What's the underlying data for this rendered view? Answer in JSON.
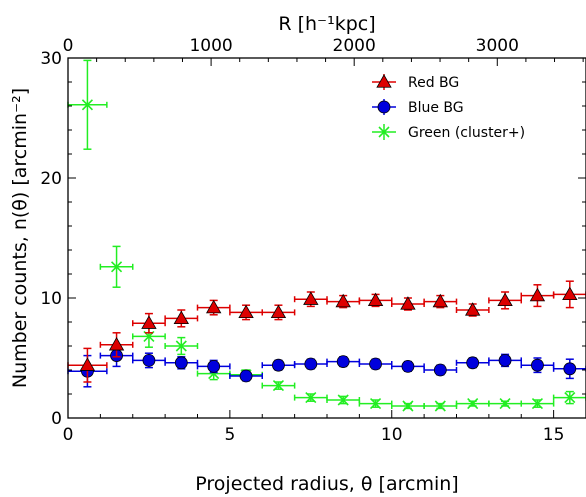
{
  "chart_data": {
    "type": "scatter",
    "title": "",
    "xlabel": "Projected radius, θ [arcmin]",
    "ylabel": "Number counts, n(θ) [arcmin⁻²]",
    "top_xlabel": "R [h⁻¹kpc]",
    "xlim": [
      0,
      16
    ],
    "ylim": [
      0,
      30
    ],
    "top_xlim_kpc": [
      0,
      3620
    ],
    "x_ticks": [
      "0",
      "5",
      "10",
      "15"
    ],
    "y_ticks": [
      "0",
      "10",
      "20",
      "30"
    ],
    "top_ticks": [
      "0",
      "1000",
      "2000",
      "3000"
    ],
    "legend_position": "top-right",
    "series": [
      {
        "name": "Red BG",
        "marker": "triangle",
        "color": "#dd0000",
        "points": [
          {
            "x": 0.6,
            "xerr": 0.6,
            "y": 4.4,
            "yerr": 1.4
          },
          {
            "x": 1.5,
            "xerr": 0.5,
            "y": 6.1,
            "yerr": 1.0
          },
          {
            "x": 2.5,
            "xerr": 0.5,
            "y": 7.9,
            "yerr": 0.8
          },
          {
            "x": 3.5,
            "xerr": 0.5,
            "y": 8.3,
            "yerr": 0.7
          },
          {
            "x": 4.5,
            "xerr": 0.5,
            "y": 9.2,
            "yerr": 0.6
          },
          {
            "x": 5.5,
            "xerr": 0.5,
            "y": 8.8,
            "yerr": 0.6
          },
          {
            "x": 6.5,
            "xerr": 0.5,
            "y": 8.8,
            "yerr": 0.6
          },
          {
            "x": 7.5,
            "xerr": 0.5,
            "y": 9.9,
            "yerr": 0.6
          },
          {
            "x": 8.5,
            "xerr": 0.5,
            "y": 9.7,
            "yerr": 0.5
          },
          {
            "x": 9.5,
            "xerr": 0.5,
            "y": 9.8,
            "yerr": 0.5
          },
          {
            "x": 10.5,
            "xerr": 0.5,
            "y": 9.5,
            "yerr": 0.5
          },
          {
            "x": 11.5,
            "xerr": 0.5,
            "y": 9.7,
            "yerr": 0.5
          },
          {
            "x": 12.5,
            "xerr": 0.5,
            "y": 9.0,
            "yerr": 0.5
          },
          {
            "x": 13.5,
            "xerr": 0.5,
            "y": 9.8,
            "yerr": 0.7
          },
          {
            "x": 14.5,
            "xerr": 0.5,
            "y": 10.2,
            "yerr": 0.9
          },
          {
            "x": 15.5,
            "xerr": 0.5,
            "y": 10.3,
            "yerr": 1.1
          }
        ]
      },
      {
        "name": "Blue BG",
        "marker": "circle",
        "color": "#0000dd",
        "points": [
          {
            "x": 0.6,
            "xerr": 0.6,
            "y": 3.9,
            "yerr": 1.3
          },
          {
            "x": 1.5,
            "xerr": 0.5,
            "y": 5.2,
            "yerr": 0.9
          },
          {
            "x": 2.5,
            "xerr": 0.5,
            "y": 4.8,
            "yerr": 0.6
          },
          {
            "x": 3.5,
            "xerr": 0.5,
            "y": 4.6,
            "yerr": 0.5
          },
          {
            "x": 4.5,
            "xerr": 0.5,
            "y": 4.3,
            "yerr": 0.5
          },
          {
            "x": 5.5,
            "xerr": 0.5,
            "y": 3.5,
            "yerr": 0.4
          },
          {
            "x": 6.5,
            "xerr": 0.5,
            "y": 4.4,
            "yerr": 0.4
          },
          {
            "x": 7.5,
            "xerr": 0.5,
            "y": 4.5,
            "yerr": 0.4
          },
          {
            "x": 8.5,
            "xerr": 0.5,
            "y": 4.7,
            "yerr": 0.4
          },
          {
            "x": 9.5,
            "xerr": 0.5,
            "y": 4.5,
            "yerr": 0.4
          },
          {
            "x": 10.5,
            "xerr": 0.5,
            "y": 4.3,
            "yerr": 0.4
          },
          {
            "x": 11.5,
            "xerr": 0.5,
            "y": 4.0,
            "yerr": 0.4
          },
          {
            "x": 12.5,
            "xerr": 0.5,
            "y": 4.6,
            "yerr": 0.4
          },
          {
            "x": 13.5,
            "xerr": 0.5,
            "y": 4.8,
            "yerr": 0.5
          },
          {
            "x": 14.5,
            "xerr": 0.5,
            "y": 4.4,
            "yerr": 0.6
          },
          {
            "x": 15.5,
            "xerr": 0.5,
            "y": 4.1,
            "yerr": 0.8
          }
        ]
      },
      {
        "name": "Green (cluster+)",
        "marker": "x",
        "color": "#22ee22",
        "points": [
          {
            "x": 0.6,
            "xerr": 0.6,
            "y": 26.1,
            "yerr": 3.7
          },
          {
            "x": 1.5,
            "xerr": 0.5,
            "y": 12.6,
            "yerr": 1.7
          },
          {
            "x": 2.5,
            "xerr": 0.5,
            "y": 6.8,
            "yerr": 0.9
          },
          {
            "x": 3.5,
            "xerr": 0.5,
            "y": 6.0,
            "yerr": 0.7
          },
          {
            "x": 4.5,
            "xerr": 0.5,
            "y": 3.7,
            "yerr": 0.5
          },
          {
            "x": 5.5,
            "xerr": 0.5,
            "y": 3.6,
            "yerr": 0.4
          },
          {
            "x": 6.5,
            "xerr": 0.5,
            "y": 2.7,
            "yerr": 0.3
          },
          {
            "x": 7.5,
            "xerr": 0.5,
            "y": 1.7,
            "yerr": 0.3
          },
          {
            "x": 8.5,
            "xerr": 0.5,
            "y": 1.5,
            "yerr": 0.3
          },
          {
            "x": 9.5,
            "xerr": 0.5,
            "y": 1.2,
            "yerr": 0.3
          },
          {
            "x": 10.5,
            "xerr": 0.5,
            "y": 1.0,
            "yerr": 0.2
          },
          {
            "x": 11.5,
            "xerr": 0.5,
            "y": 1.0,
            "yerr": 0.2
          },
          {
            "x": 12.5,
            "xerr": 0.5,
            "y": 1.2,
            "yerr": 0.2
          },
          {
            "x": 13.5,
            "xerr": 0.5,
            "y": 1.2,
            "yerr": 0.2
          },
          {
            "x": 14.5,
            "xerr": 0.5,
            "y": 1.2,
            "yerr": 0.3
          },
          {
            "x": 15.5,
            "xerr": 0.5,
            "y": 1.7,
            "yerr": 0.5
          }
        ]
      }
    ]
  }
}
